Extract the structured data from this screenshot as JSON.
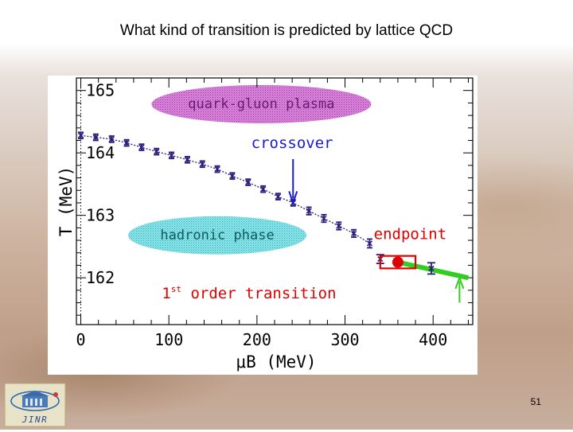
{
  "slide": {
    "title": "What kind of transition is predicted by lattice QCD",
    "page_number": "51",
    "logo_text": "JINR"
  },
  "chart_data": {
    "type": "scatter",
    "title": "",
    "xlabel": "μB (MeV)",
    "ylabel": "T (MeV)",
    "xlim": [
      -5,
      445
    ],
    "ylim": [
      161.25,
      165.2
    ],
    "xticks": [
      0,
      100,
      200,
      300,
      400
    ],
    "yticks": [
      162,
      163,
      164,
      165
    ],
    "x_tick_labels": [
      "0",
      "100",
      "200",
      "300",
      "400"
    ],
    "y_tick_labels": [
      "162",
      "163",
      "164",
      "165"
    ],
    "grid": false,
    "crossover_points": [
      {
        "x": 0,
        "y": 164.28,
        "err": 0.05
      },
      {
        "x": 17,
        "y": 164.25,
        "err": 0.05
      },
      {
        "x": 35,
        "y": 164.22,
        "err": 0.05
      },
      {
        "x": 52,
        "y": 164.16,
        "err": 0.05
      },
      {
        "x": 69,
        "y": 164.09,
        "err": 0.05
      },
      {
        "x": 86,
        "y": 164.02,
        "err": 0.05
      },
      {
        "x": 103,
        "y": 163.96,
        "err": 0.05
      },
      {
        "x": 121,
        "y": 163.89,
        "err": 0.05
      },
      {
        "x": 138,
        "y": 163.82,
        "err": 0.05
      },
      {
        "x": 155,
        "y": 163.74,
        "err": 0.05
      },
      {
        "x": 172,
        "y": 163.63,
        "err": 0.05
      },
      {
        "x": 190,
        "y": 163.53,
        "err": 0.05
      },
      {
        "x": 207,
        "y": 163.42,
        "err": 0.05
      },
      {
        "x": 224,
        "y": 163.3,
        "err": 0.05
      },
      {
        "x": 241,
        "y": 163.2,
        "err": 0.05
      },
      {
        "x": 259,
        "y": 163.07,
        "err": 0.06
      },
      {
        "x": 276,
        "y": 162.95,
        "err": 0.06
      },
      {
        "x": 293,
        "y": 162.83,
        "err": 0.06
      },
      {
        "x": 310,
        "y": 162.71,
        "err": 0.06
      },
      {
        "x": 328,
        "y": 162.55,
        "err": 0.07
      }
    ],
    "endpoint": {
      "x": 360,
      "y": 162.25,
      "err_x": 20,
      "err_y": 0.1
    },
    "first_order_points": [
      {
        "x": 340,
        "y": 162.3,
        "err": 0.07
      },
      {
        "x": 398,
        "y": 162.15,
        "err": 0.09
      }
    ],
    "first_order_line": [
      {
        "x": 360,
        "y": 162.25
      },
      {
        "x": 440,
        "y": 162.0
      }
    ],
    "regions": {
      "qgp": "quark-gluon plasma",
      "hadronic": "hadronic phase"
    },
    "annotations": {
      "crossover": "crossover",
      "endpoint": "endpoint",
      "first_order_prefix": "1",
      "first_order_sup": "st",
      "first_order_suffix": "order transition"
    },
    "colors": {
      "points": "#2a1e7a",
      "endpoint": "#e00000",
      "first_order_line": "#33cc22",
      "annotation_blue": "#1a1ad0",
      "annotation_red": "#e00000",
      "qgp_region": "#c04fc4",
      "hadronic_region": "#3fc7cf"
    }
  }
}
